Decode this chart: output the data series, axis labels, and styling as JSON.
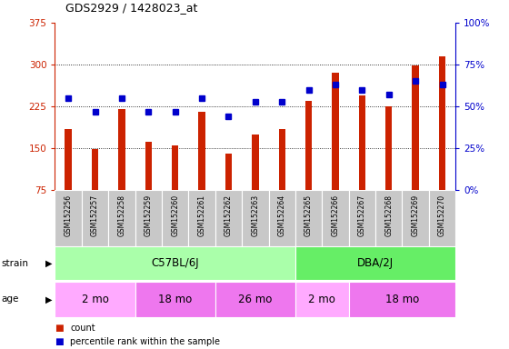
{
  "title": "GDS2929 / 1428023_at",
  "samples": [
    "GSM152256",
    "GSM152257",
    "GSM152258",
    "GSM152259",
    "GSM152260",
    "GSM152261",
    "GSM152262",
    "GSM152263",
    "GSM152264",
    "GSM152265",
    "GSM152266",
    "GSM152267",
    "GSM152268",
    "GSM152269",
    "GSM152270"
  ],
  "counts": [
    185,
    148,
    220,
    162,
    155,
    215,
    140,
    175,
    185,
    235,
    285,
    245,
    225,
    298,
    315
  ],
  "percentile": [
    55,
    47,
    55,
    47,
    47,
    55,
    44,
    53,
    53,
    60,
    63,
    60,
    57,
    65,
    63
  ],
  "ylim_left": [
    75,
    375
  ],
  "ylim_right": [
    0,
    100
  ],
  "yticks_left": [
    75,
    150,
    225,
    300,
    375
  ],
  "yticks_right": [
    0,
    25,
    50,
    75,
    100
  ],
  "bar_color": "#cc2200",
  "dot_color": "#0000cc",
  "grid_yticks": [
    150,
    225,
    300
  ],
  "strain_groups": [
    {
      "label": "C57BL/6J",
      "start": 0,
      "end": 9,
      "color": "#aaffaa"
    },
    {
      "label": "DBA/2J",
      "start": 9,
      "end": 15,
      "color": "#66ee66"
    }
  ],
  "age_groups": [
    {
      "label": "2 mo",
      "start": 0,
      "end": 3,
      "color": "#ffaaff"
    },
    {
      "label": "18 mo",
      "start": 3,
      "end": 6,
      "color": "#ee77ee"
    },
    {
      "label": "26 mo",
      "start": 6,
      "end": 9,
      "color": "#ee77ee"
    },
    {
      "label": "2 mo",
      "start": 9,
      "end": 11,
      "color": "#ffaaff"
    },
    {
      "label": "18 mo",
      "start": 11,
      "end": 15,
      "color": "#ee77ee"
    }
  ],
  "label_bg": "#c8c8c8",
  "legend_count_label": "count",
  "legend_pct_label": "percentile rank within the sample",
  "strain_label": "strain",
  "age_label": "age",
  "bar_width": 0.25
}
